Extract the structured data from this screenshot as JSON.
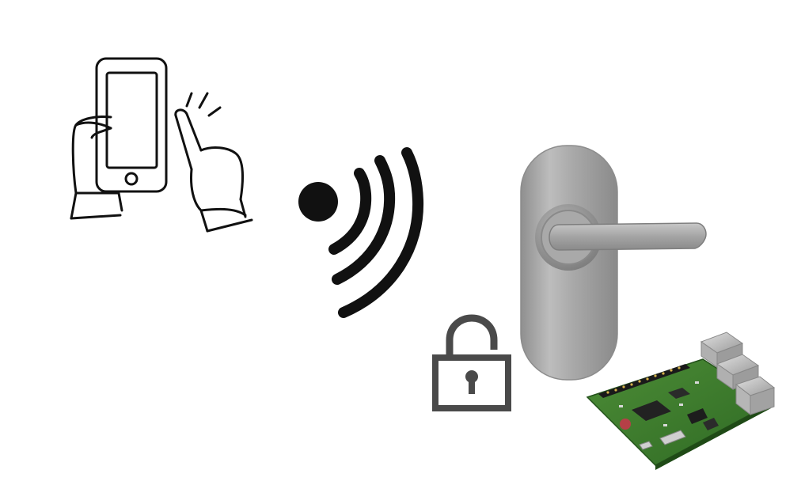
{
  "scene": {
    "elements": [
      {
        "name": "smartphone-tap-illustration",
        "icon": "hand-tapping-phone-icon"
      },
      {
        "name": "wireless-signal",
        "icon": "wireless-signal-icon"
      },
      {
        "name": "door-handle",
        "icon": "door-lever-handle-icon"
      },
      {
        "name": "unlocked-padlock",
        "icon": "unlocked-padlock-icon"
      },
      {
        "name": "raspberry-pi-board",
        "icon": "raspberry-pi-board-icon"
      }
    ],
    "colors": {
      "ink": "#111111",
      "lock": "#4a4a4a",
      "handle": "#9c9c9c",
      "board": "#3f7a2f",
      "port": "#c9c9c9"
    }
  }
}
